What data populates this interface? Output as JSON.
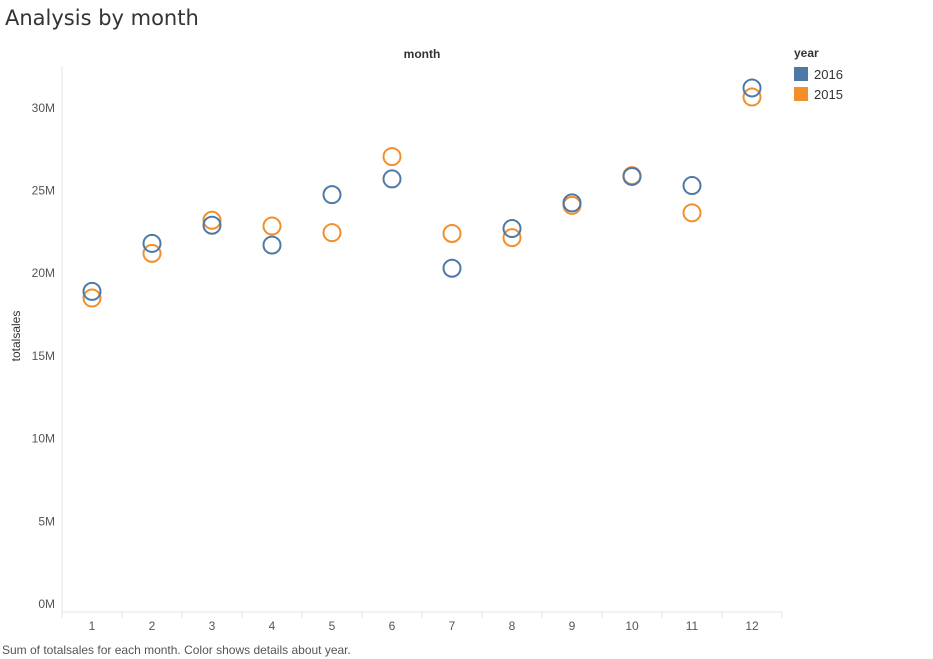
{
  "page": {
    "title": "Analysis by month",
    "caption": "Sum of totalsales for each month.  Color shows details about year."
  },
  "colors": {
    "2016": "#4e79a7",
    "2015": "#f28e2b",
    "grid": "#e6e6e6",
    "axis_text": "#555555"
  },
  "legend": {
    "title": "year",
    "items": [
      {
        "label": "2016",
        "color": "#4e79a7"
      },
      {
        "label": "2015",
        "color": "#f28e2b"
      }
    ]
  },
  "chart_data": {
    "type": "scatter",
    "title": "Analysis by month",
    "xlabel": "month",
    "ylabel": "totalsales",
    "categories": [
      "1",
      "2",
      "3",
      "4",
      "5",
      "6",
      "7",
      "8",
      "9",
      "10",
      "11",
      "12"
    ],
    "y_ticks": [
      "0M",
      "5M",
      "10M",
      "15M",
      "20M",
      "25M",
      "30M"
    ],
    "ylim": [
      0,
      33000000
    ],
    "legend_position": "top-right",
    "series": [
      {
        "name": "2016",
        "color": "#4e79a7",
        "values": [
          18900000,
          21800000,
          22900000,
          21700000,
          24750000,
          25700000,
          20300000,
          22700000,
          24250000,
          25850000,
          25300000,
          31200000
        ]
      },
      {
        "name": "2015",
        "color": "#f28e2b",
        "values": [
          18500000,
          21200000,
          23200000,
          22850000,
          22450000,
          27050000,
          22400000,
          22150000,
          24100000,
          25900000,
          23650000,
          30650000
        ]
      }
    ]
  }
}
